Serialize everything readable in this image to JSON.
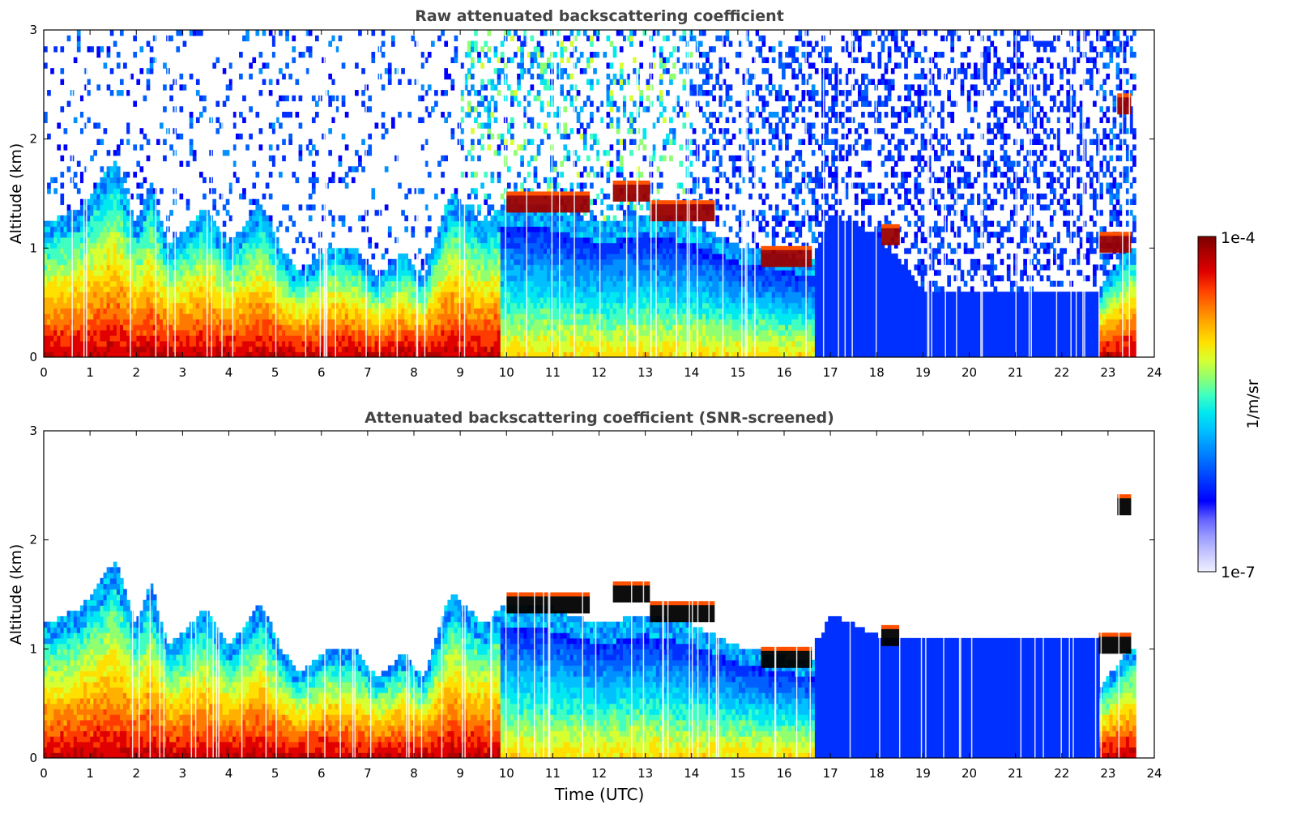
{
  "figure": {
    "xlabel": "Time (UTC)",
    "colorbar": {
      "label": "1/m/sr",
      "min_label": "1e-7",
      "max_label": "1e-4",
      "scale": "log",
      "colors": [
        "#eef0ff",
        "#c8c8ff",
        "#9a9aff",
        "#6060ff",
        "#0000ff",
        "#0030ff",
        "#0060ff",
        "#0090ff",
        "#00c0ff",
        "#00e8f0",
        "#40ffc0",
        "#90ff70",
        "#d8ff30",
        "#ffe000",
        "#ffb000",
        "#ff7800",
        "#ff3c00",
        "#e00000",
        "#b00000",
        "#7a0000"
      ]
    }
  },
  "chart_data": [
    {
      "type": "heatmap",
      "title": "Raw attenuated backscattering coefficient",
      "xlabel": "",
      "ylabel": "Altitude (km)",
      "xlim": [
        0,
        24
      ],
      "ylim": [
        0,
        3
      ],
      "xticks": [
        "0",
        "1",
        "2",
        "3",
        "4",
        "5",
        "6",
        "7",
        "8",
        "9",
        "10",
        "11",
        "12",
        "13",
        "14",
        "15",
        "16",
        "17",
        "18",
        "19",
        "20",
        "21",
        "22",
        "23",
        "24"
      ],
      "yticks": [
        "0",
        "1",
        "2",
        "3"
      ],
      "data_end_time": 23.6,
      "boundary_layer_top_km": [
        [
          0,
          1.2
        ],
        [
          0.8,
          1.35
        ],
        [
          1.55,
          1.8
        ],
        [
          2,
          1.2
        ],
        [
          2.3,
          1.6
        ],
        [
          2.7,
          1.0
        ],
        [
          3.5,
          1.35
        ],
        [
          4.0,
          1.0
        ],
        [
          4.7,
          1.4
        ],
        [
          5.1,
          1.0
        ],
        [
          5.5,
          0.75
        ],
        [
          6.2,
          1.0
        ],
        [
          6.8,
          0.95
        ],
        [
          7.2,
          0.7
        ],
        [
          7.8,
          0.95
        ],
        [
          8.2,
          0.7
        ],
        [
          8.8,
          1.5
        ],
        [
          9.5,
          1.2
        ],
        [
          10,
          1.4
        ],
        [
          11,
          1.35
        ],
        [
          12,
          1.2
        ],
        [
          13,
          1.3
        ],
        [
          14,
          1.2
        ],
        [
          15,
          1.0
        ],
        [
          16,
          0.9
        ],
        [
          16.6,
          0.85
        ],
        [
          17,
          1.3
        ],
        [
          18,
          1.1
        ],
        [
          19,
          0.6
        ],
        [
          22.8,
          0.6
        ],
        [
          23.5,
          1.0
        ]
      ],
      "cloud_layers": [
        {
          "t_start": 10.0,
          "t_end": 11.8,
          "alt_km": 1.4
        },
        {
          "t_start": 12.3,
          "t_end": 13.1,
          "alt_km": 1.5
        },
        {
          "t_start": 13.1,
          "t_end": 14.5,
          "alt_km": 1.32
        },
        {
          "t_start": 15.5,
          "t_end": 16.6,
          "alt_km": 0.9
        },
        {
          "t_start": 18.1,
          "t_end": 18.5,
          "alt_km": 1.1
        },
        {
          "t_start": 22.8,
          "t_end": 23.5,
          "alt_km": 1.03
        },
        {
          "t_start": 23.2,
          "t_end": 23.5,
          "alt_km": 2.3
        }
      ]
    },
    {
      "type": "heatmap",
      "title": "Attenuated backscattering coefficient (SNR-screened)",
      "xlabel": "Time (UTC)",
      "ylabel": "Altitude (km)",
      "xlim": [
        0,
        24
      ],
      "ylim": [
        0,
        3
      ],
      "xticks": [
        "0",
        "1",
        "2",
        "3",
        "4",
        "5",
        "6",
        "7",
        "8",
        "9",
        "10",
        "11",
        "12",
        "13",
        "14",
        "15",
        "16",
        "17",
        "18",
        "19",
        "20",
        "21",
        "22",
        "23",
        "24"
      ],
      "yticks": [
        "0",
        "1",
        "2",
        "3"
      ],
      "data_end_time": 23.6,
      "saturated_clouds_black": true
    }
  ]
}
